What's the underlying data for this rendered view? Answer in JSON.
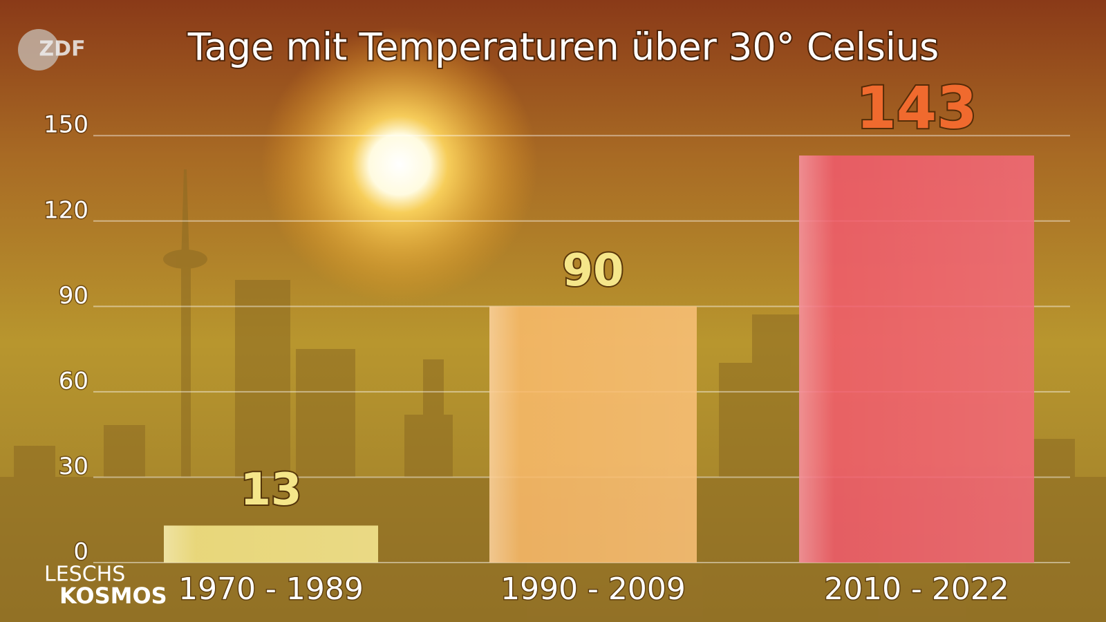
{
  "channel_logo": "ZDF",
  "show_logo": [
    "LESCHS",
    "KOSMOS"
  ],
  "chart_data": {
    "type": "bar",
    "title": "Tage mit Temperaturen über 30° Celsius",
    "categories": [
      "1970 - 1989",
      "1990 - 2009",
      "2010 - 2022"
    ],
    "values": [
      13,
      90,
      143
    ],
    "colors": [
      "#f4e47c",
      "#f8b35c",
      "#f04a5e"
    ],
    "value_label_colors": [
      "#f5e68a",
      "#f5e68a",
      "#f06a2e"
    ],
    "ylim": [
      0,
      160
    ],
    "yticks": [
      0,
      30,
      60,
      90,
      120,
      150
    ],
    "grid": true
  }
}
